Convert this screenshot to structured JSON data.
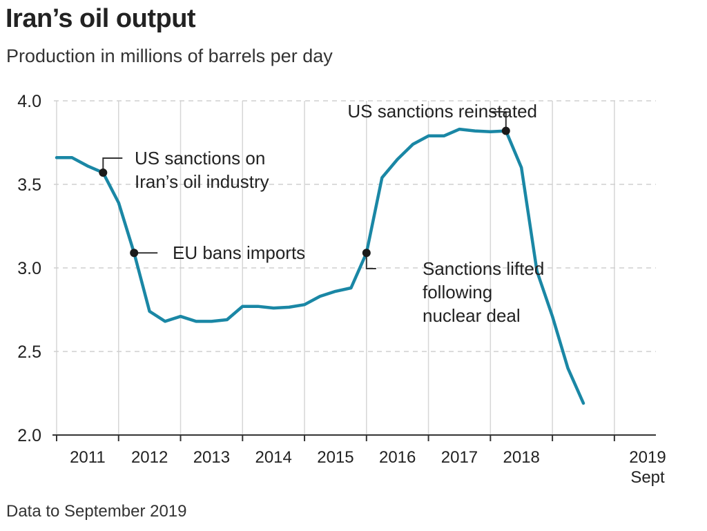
{
  "header": {
    "title": "Iran’s oil output",
    "subtitle": "Production in millions of barrels per day"
  },
  "footer": {
    "note": "Data to September 2019"
  },
  "colors": {
    "line": "#1a87a5",
    "grid_dashed": "#cfcfcf",
    "grid_vertical": "#d6d6d6",
    "axis": "#333333",
    "marker": "#1a1a1a",
    "text": "#222222"
  },
  "chart_data": {
    "type": "line",
    "title": "Iran’s oil output",
    "ylabel": "Production in millions of barrels per day",
    "xlabel": "",
    "ylim": [
      2.0,
      4.0
    ],
    "xlim": [
      2010.0,
      2019.67
    ],
    "y_ticks": [
      2.0,
      2.5,
      3.0,
      3.5,
      4.0
    ],
    "y_tick_labels": [
      "2.0",
      "2.5",
      "3.0",
      "3.5",
      "4.0"
    ],
    "x_tick_labels": [
      "2011",
      "2012",
      "2013",
      "2014",
      "2015",
      "2016",
      "2017",
      "2018",
      "2019"
    ],
    "x_last_sublabel": "Sept",
    "grid": true,
    "series": [
      {
        "name": "Iran oil output",
        "points": [
          [
            2010.0,
            3.66
          ],
          [
            2010.25,
            3.66
          ],
          [
            2010.5,
            3.61
          ],
          [
            2010.75,
            3.57
          ],
          [
            2011.0,
            3.39
          ],
          [
            2011.25,
            3.09
          ],
          [
            2011.5,
            2.74
          ],
          [
            2011.75,
            2.68
          ],
          [
            2012.0,
            2.71
          ],
          [
            2012.25,
            2.68
          ],
          [
            2012.5,
            2.68
          ],
          [
            2012.75,
            2.69
          ],
          [
            2013.0,
            2.77
          ],
          [
            2013.25,
            2.77
          ],
          [
            2013.5,
            2.76
          ],
          [
            2013.75,
            2.765
          ],
          [
            2014.0,
            2.78
          ],
          [
            2014.25,
            2.83
          ],
          [
            2014.5,
            2.86
          ],
          [
            2014.75,
            2.88
          ],
          [
            2015.0,
            3.09
          ],
          [
            2015.25,
            3.54
          ],
          [
            2015.5,
            3.65
          ],
          [
            2015.75,
            3.74
          ],
          [
            2016.0,
            3.79
          ],
          [
            2016.25,
            3.79
          ],
          [
            2016.5,
            3.83
          ],
          [
            2016.75,
            3.82
          ],
          [
            2017.0,
            3.815
          ],
          [
            2017.25,
            3.82
          ],
          [
            2017.5,
            3.6
          ],
          [
            2017.75,
            2.98
          ],
          [
            2018.0,
            2.71
          ],
          [
            2018.25,
            2.4
          ],
          [
            2018.5,
            2.19
          ]
        ]
      }
    ],
    "annotations": [
      {
        "text_lines": [
          "US sanctions on",
          "Iran’s oil industry"
        ],
        "x": 2010.75,
        "y": 3.57
      },
      {
        "text_lines": [
          "EU bans imports"
        ],
        "x": 2011.25,
        "y": 3.09
      },
      {
        "text_lines": [
          "Sanctions lifted",
          "following",
          "nuclear deal"
        ],
        "x": 2015.0,
        "y": 3.09
      },
      {
        "text_lines": [
          "US sanctions reinstated"
        ],
        "x": 2017.25,
        "y": 3.82
      }
    ],
    "footnote": "Data to September 2019"
  }
}
